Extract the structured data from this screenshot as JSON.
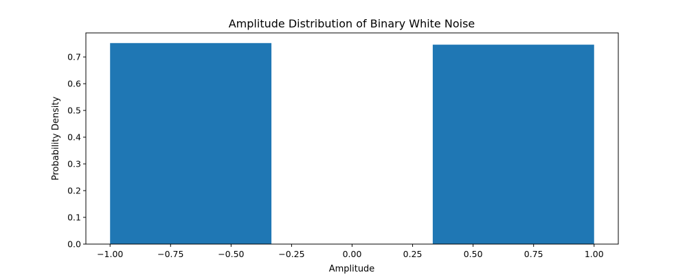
{
  "chart_data": {
    "type": "bar",
    "title": "Amplitude Distribution of Binary White Noise",
    "xlabel": "Amplitude",
    "ylabel": "Probability Density",
    "xlim": [
      -1.1,
      1.1
    ],
    "ylim": [
      0.0,
      0.79
    ],
    "grid": false,
    "bar_color": "#1f77b4",
    "bins": [
      {
        "x0": -1.0,
        "x1": -0.3333,
        "value": 0.752
      },
      {
        "x0": -0.3333,
        "x1": 0.3333,
        "value": 0.0
      },
      {
        "x0": 0.3333,
        "x1": 1.0,
        "value": 0.746
      }
    ],
    "x_ticks": [
      {
        "value": -1.0,
        "label": "−1.00"
      },
      {
        "value": -0.75,
        "label": "−0.75"
      },
      {
        "value": -0.5,
        "label": "−0.50"
      },
      {
        "value": -0.25,
        "label": "−0.25"
      },
      {
        "value": 0.0,
        "label": "0.00"
      },
      {
        "value": 0.25,
        "label": "0.25"
      },
      {
        "value": 0.5,
        "label": "0.50"
      },
      {
        "value": 0.75,
        "label": "0.75"
      },
      {
        "value": 1.0,
        "label": "1.00"
      }
    ],
    "y_ticks": [
      {
        "value": 0.0,
        "label": "0.0"
      },
      {
        "value": 0.1,
        "label": "0.1"
      },
      {
        "value": 0.2,
        "label": "0.2"
      },
      {
        "value": 0.3,
        "label": "0.3"
      },
      {
        "value": 0.4,
        "label": "0.4"
      },
      {
        "value": 0.5,
        "label": "0.5"
      },
      {
        "value": 0.6,
        "label": "0.6"
      },
      {
        "value": 0.7,
        "label": "0.7"
      }
    ]
  }
}
